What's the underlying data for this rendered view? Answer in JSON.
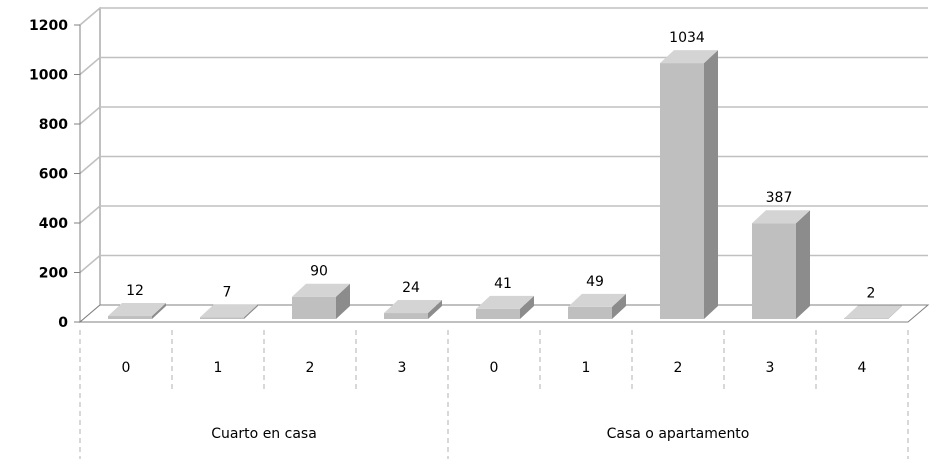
{
  "chart_data": {
    "type": "bar",
    "title": "",
    "xlabel": "",
    "ylabel": "",
    "ylim": [
      0,
      1200
    ],
    "yticks": [
      0,
      200,
      400,
      600,
      800,
      1000,
      1200
    ],
    "grid": true,
    "legend": "none",
    "style": "3d-column",
    "colors": {
      "bar_front": "#bfbfbf",
      "bar_side": "#8c8c8c",
      "bar_top": "#d4d4d4",
      "grid": "#c0c0c0",
      "axis": "#808080"
    },
    "categories": [
      {
        "group": "Cuarto en casa",
        "label": "0"
      },
      {
        "group": "Cuarto en casa",
        "label": "1"
      },
      {
        "group": "Cuarto en casa",
        "label": "2"
      },
      {
        "group": "Cuarto en casa",
        "label": "3"
      },
      {
        "group": "Casa o apartamento",
        "label": "0"
      },
      {
        "group": "Casa o apartamento",
        "label": "1"
      },
      {
        "group": "Casa o apartamento",
        "label": "2"
      },
      {
        "group": "Casa o apartamento",
        "label": "3"
      },
      {
        "group": "Casa o apartamento",
        "label": "4"
      }
    ],
    "groups": [
      "Cuarto en casa",
      "Casa o apartamento"
    ],
    "values": [
      12,
      7,
      90,
      24,
      41,
      49,
      1034,
      387,
      2
    ],
    "data_labels": [
      "12",
      "7",
      "90",
      "24",
      "41",
      "49",
      "1034",
      "387",
      "2"
    ]
  }
}
